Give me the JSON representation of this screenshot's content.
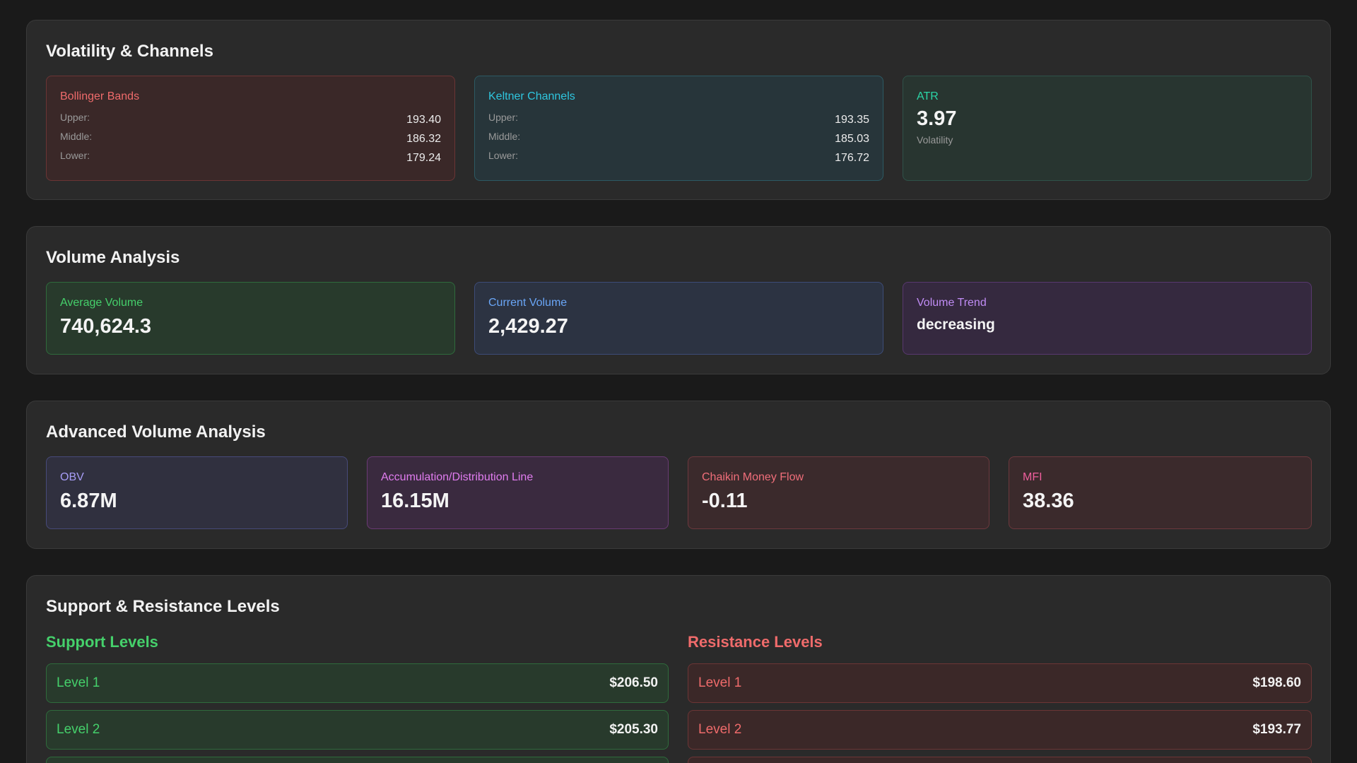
{
  "volatility": {
    "title": "Volatility & Channels",
    "bollinger": {
      "label": "Bollinger Bands",
      "upper_key": "Upper:",
      "upper": "193.40",
      "middle_key": "Middle:",
      "middle": "186.32",
      "lower_key": "Lower:",
      "lower": "179.24"
    },
    "keltner": {
      "label": "Keltner Channels",
      "upper_key": "Upper:",
      "upper": "193.35",
      "middle_key": "Middle:",
      "middle": "185.03",
      "lower_key": "Lower:",
      "lower": "176.72"
    },
    "atr": {
      "label": "ATR",
      "value": "3.97",
      "sub": "Volatility"
    }
  },
  "volume": {
    "title": "Volume Analysis",
    "average": {
      "label": "Average Volume",
      "value": "740,624.3"
    },
    "current": {
      "label": "Current Volume",
      "value": "2,429.27"
    },
    "trend": {
      "label": "Volume Trend",
      "value": "decreasing"
    }
  },
  "advanced": {
    "title": "Advanced Volume Analysis",
    "obv": {
      "label": "OBV",
      "value": "6.87M"
    },
    "adl": {
      "label": "Accumulation/Distribution Line",
      "value": "16.15M"
    },
    "cmf": {
      "label": "Chaikin Money Flow",
      "value": "-0.11"
    },
    "mfi": {
      "label": "MFI",
      "value": "38.36"
    }
  },
  "levels": {
    "title": "Support & Resistance Levels",
    "support": {
      "title": "Support Levels",
      "items": [
        {
          "name": "Level 1",
          "price": "$206.50"
        },
        {
          "name": "Level 2",
          "price": "$205.30"
        }
      ]
    },
    "resistance": {
      "title": "Resistance Levels",
      "items": [
        {
          "name": "Level 1",
          "price": "$198.60"
        },
        {
          "name": "Level 2",
          "price": "$193.77"
        }
      ]
    }
  }
}
